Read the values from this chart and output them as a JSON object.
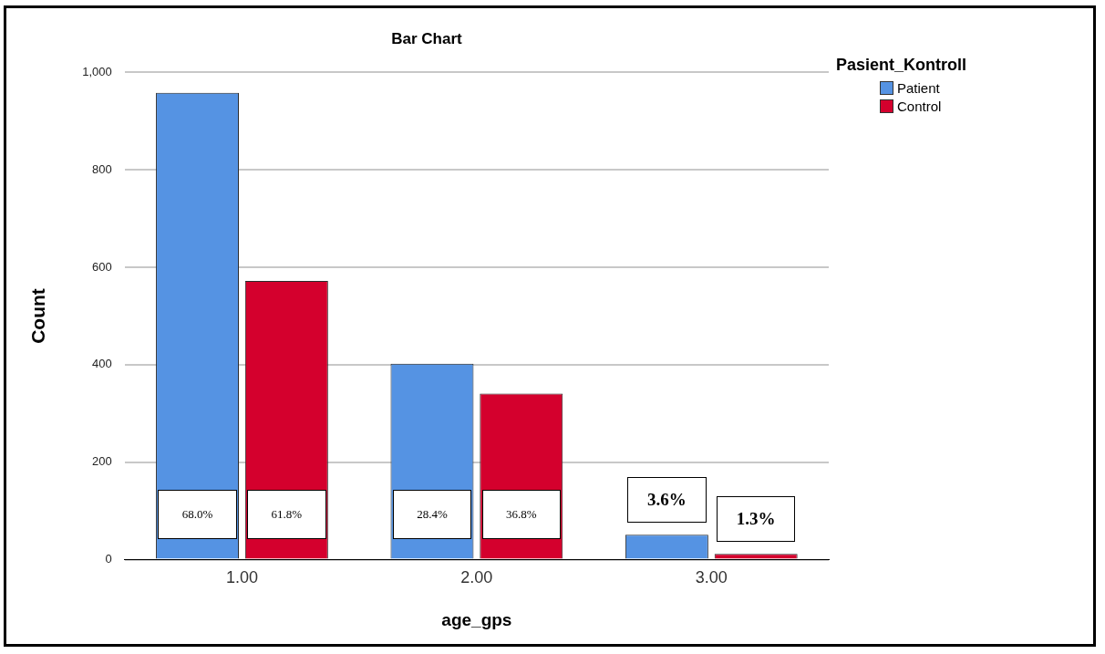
{
  "chart_data": {
    "type": "bar",
    "title": "Bar Chart",
    "xlabel": "age_gps",
    "ylabel": "Count",
    "legend_title": "Pasient_Kontroll",
    "categories": [
      "1.00",
      "2.00",
      "3.00"
    ],
    "series": [
      {
        "name": "Patient",
        "color": "#5593e3",
        "values": [
          958,
          402,
          51
        ]
      },
      {
        "name": "Control",
        "color": "#d4002d",
        "values": [
          572,
          341,
          12
        ]
      }
    ],
    "annotations": [
      "68.0%",
      "61.8%",
      "28.4%",
      "36.8%",
      "3.6%",
      "1.3%"
    ],
    "ylim": [
      0,
      1000
    ],
    "yticks": [
      0,
      200,
      400,
      600,
      800,
      {
        "value": 1000,
        "label": "1,000"
      }
    ],
    "grid": "y",
    "legend": "top right"
  }
}
